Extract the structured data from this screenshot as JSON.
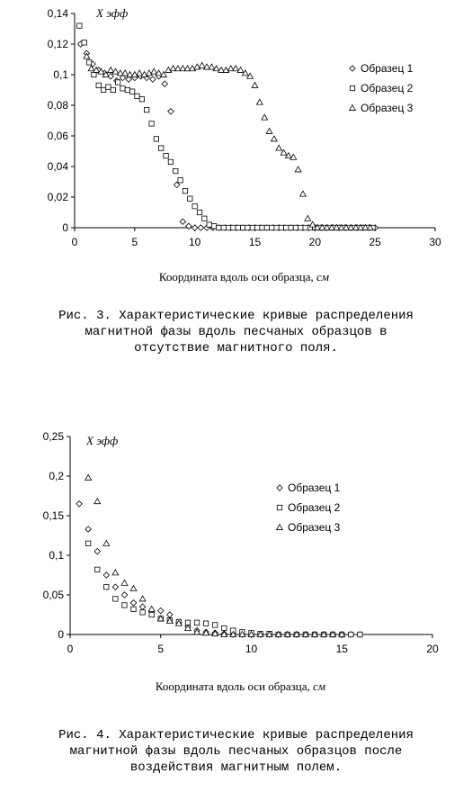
{
  "chart_data": [
    {
      "type": "scatter",
      "ylabel": "X эфф",
      "xlabel_prefix": "Координата вдоль оси образца, ",
      "xlabel_unit": "см",
      "xlim": [
        0,
        30
      ],
      "ylim": [
        0,
        0.14
      ],
      "xticks": [
        0,
        5,
        10,
        15,
        20,
        25,
        30
      ],
      "yticks": [
        0,
        0.02,
        0.04,
        0.06,
        0.08,
        0.1,
        0.12,
        0.14
      ],
      "ytick_labels": [
        "0",
        "0,02",
        "0,04",
        "0,06",
        "0,08",
        "0,1",
        "0,12",
        "0,14"
      ],
      "grid": false,
      "legend": "right",
      "series": [
        {
          "name": "Образец 1",
          "marker": "diamond",
          "x": [
            0.5,
            1.0,
            1.5,
            2.0,
            2.5,
            3.0,
            3.5,
            4.0,
            4.5,
            5.0,
            5.5,
            6.0,
            6.5,
            7.0,
            7.5,
            8.0,
            8.5,
            9.0,
            9.5,
            10.0,
            10.5,
            11.0,
            11.5,
            12.0,
            12.5,
            13.0,
            13.5,
            14.0,
            14.5,
            15.0,
            15.5,
            16.0,
            16.5,
            17.0,
            17.5,
            18.0,
            18.5,
            19.0,
            19.5,
            20.0,
            20.5,
            21.0,
            21.5,
            22.0,
            22.5,
            23.0,
            23.5,
            24.0,
            24.5,
            25.0
          ],
          "y": [
            0.12,
            0.114,
            0.107,
            0.103,
            0.101,
            0.099,
            0.096,
            0.098,
            0.097,
            0.098,
            0.099,
            0.098,
            0.097,
            0.099,
            0.094,
            0.076,
            0.028,
            0.004,
            0.001,
            0,
            0,
            0,
            0,
            0,
            0,
            0,
            0,
            0,
            0,
            0,
            0,
            0,
            0,
            0,
            0,
            0,
            0,
            0,
            0,
            0,
            0,
            0,
            0,
            0,
            0,
            0,
            0,
            0,
            0,
            0
          ]
        },
        {
          "name": "Образец 2",
          "marker": "square",
          "x": [
            0.4,
            0.8,
            1.2,
            1.6,
            2.0,
            2.4,
            2.8,
            3.2,
            3.6,
            4.0,
            4.4,
            4.8,
            5.2,
            5.6,
            6.0,
            6.4,
            6.8,
            7.2,
            7.6,
            8.0,
            8.4,
            8.8,
            9.2,
            9.6,
            10.0,
            10.4,
            10.8,
            11.2,
            11.6,
            12.0,
            12.4,
            12.8,
            13.2,
            13.6,
            14.0,
            14.4,
            14.8,
            15.2,
            15.6,
            16.0,
            16.4,
            16.8,
            17.2,
            17.6,
            18.0,
            18.4,
            18.8,
            19.2,
            19.6,
            20.0,
            20.4,
            20.8,
            21.2,
            21.6,
            22.0,
            22.4,
            22.8,
            23.2,
            23.6,
            24.0,
            24.4,
            24.8
          ],
          "y": [
            0.132,
            0.121,
            0.108,
            0.1,
            0.093,
            0.09,
            0.092,
            0.09,
            0.095,
            0.091,
            0.09,
            0.089,
            0.086,
            0.084,
            0.077,
            0.068,
            0.058,
            0.052,
            0.047,
            0.043,
            0.037,
            0.031,
            0.024,
            0.019,
            0.014,
            0.01,
            0.006,
            0.002,
            0.001,
            0,
            0,
            0,
            0,
            0,
            0,
            0,
            0,
            0,
            0,
            0,
            0,
            0,
            0,
            0,
            0,
            0,
            0,
            0,
            0,
            0,
            0,
            0,
            0,
            0,
            0,
            0,
            0,
            0,
            0,
            0,
            0,
            0
          ]
        },
        {
          "name": "Образец 3",
          "marker": "triangle",
          "x": [
            1.0,
            1.4,
            1.8,
            2.2,
            2.6,
            3.0,
            3.4,
            3.8,
            4.2,
            4.6,
            5.0,
            5.4,
            5.8,
            6.2,
            6.6,
            7.0,
            7.4,
            7.8,
            8.2,
            8.6,
            9.0,
            9.4,
            9.8,
            10.2,
            10.6,
            11.0,
            11.4,
            11.8,
            12.2,
            12.6,
            13.0,
            13.4,
            13.8,
            14.2,
            14.6,
            15.0,
            15.4,
            15.8,
            16.2,
            16.6,
            17.0,
            17.4,
            17.8,
            18.2,
            18.6,
            19.0,
            19.4,
            19.8,
            20.2,
            20.6,
            21.0,
            21.4,
            21.8,
            22.2,
            22.6,
            23.0,
            23.4,
            23.8,
            24.2,
            24.6
          ],
          "y": [
            0.112,
            0.104,
            0.103,
            0.102,
            0.1,
            0.103,
            0.102,
            0.101,
            0.101,
            0.1,
            0.1,
            0.101,
            0.1,
            0.101,
            0.102,
            0.101,
            0.1,
            0.103,
            0.104,
            0.104,
            0.104,
            0.104,
            0.104,
            0.105,
            0.106,
            0.105,
            0.105,
            0.104,
            0.103,
            0.103,
            0.104,
            0.104,
            0.103,
            0.101,
            0.099,
            0.093,
            0.082,
            0.072,
            0.063,
            0.058,
            0.052,
            0.049,
            0.047,
            0.046,
            0.038,
            0.022,
            0.006,
            0.002,
            0,
            0,
            0,
            0,
            0,
            0,
            0,
            0,
            0,
            0,
            0,
            0
          ]
        }
      ]
    },
    {
      "type": "scatter",
      "ylabel": "X эфф",
      "xlabel_prefix": "Координата вдоль оси образца, ",
      "xlabel_unit": "см",
      "xlim": [
        0,
        20
      ],
      "ylim": [
        0,
        0.25
      ],
      "xticks": [
        0,
        5,
        10,
        15,
        20
      ],
      "yticks": [
        0,
        0.05,
        0.1,
        0.15,
        0.2,
        0.25
      ],
      "ytick_labels": [
        "0",
        "0,05",
        "0,1",
        "0,15",
        "0,2",
        "0,25"
      ],
      "grid": false,
      "legend": "right",
      "series": [
        {
          "name": "Образец 1",
          "marker": "diamond",
          "x": [
            0.5,
            1.0,
            1.5,
            2.0,
            2.5,
            3.0,
            3.5,
            4.0,
            4.5,
            5.0,
            5.5,
            6.0,
            6.5,
            7.0,
            7.5,
            8.0,
            8.5,
            9.0,
            9.5,
            10.0,
            10.5,
            11.0,
            11.5,
            12.0,
            12.5,
            13.0,
            13.5,
            14.0,
            14.5,
            15.0,
            15.5,
            16.0
          ],
          "y": [
            0.165,
            0.133,
            0.105,
            0.075,
            0.06,
            0.05,
            0.04,
            0.035,
            0.03,
            0.03,
            0.025,
            0.015,
            0.01,
            0.005,
            0.003,
            0.002,
            0.001,
            0,
            0,
            0,
            0,
            0,
            0,
            0,
            0,
            0,
            0,
            0,
            0,
            0,
            0,
            0
          ]
        },
        {
          "name": "Образец 2",
          "marker": "square",
          "x": [
            1.0,
            1.5,
            2.0,
            2.5,
            3.0,
            3.5,
            4.0,
            4.5,
            5.0,
            5.5,
            6.0,
            6.5,
            7.0,
            7.5,
            8.0,
            8.5,
            9.0,
            9.5,
            10.0,
            10.5,
            11.0,
            11.5,
            12.0,
            12.5,
            13.0,
            13.5,
            14.0,
            14.5,
            15.0,
            15.5,
            16.0
          ],
          "y": [
            0.115,
            0.082,
            0.06,
            0.045,
            0.037,
            0.032,
            0.028,
            0.025,
            0.02,
            0.018,
            0.016,
            0.015,
            0.015,
            0.014,
            0.012,
            0.008,
            0.005,
            0.003,
            0.002,
            0.001,
            0.001,
            0,
            0,
            0,
            0,
            0,
            0,
            0,
            0,
            0,
            0
          ]
        },
        {
          "name": "Образец 3",
          "marker": "triangle",
          "x": [
            1.0,
            1.5,
            2.0,
            2.5,
            3.0,
            3.5,
            4.0,
            4.5,
            5.0,
            5.5,
            6.0,
            6.5,
            7.0,
            7.5,
            8.0,
            8.5,
            9.0,
            9.5,
            10.0,
            10.5,
            11.0,
            11.5,
            12.0,
            12.5,
            13.0,
            13.5,
            14.0,
            14.5,
            15.0
          ],
          "y": [
            0.198,
            0.168,
            0.115,
            0.078,
            0.065,
            0.058,
            0.045,
            0.032,
            0.02,
            0.017,
            0.014,
            0.008,
            0.003,
            0.002,
            0.001,
            0,
            0,
            0,
            0,
            0,
            0,
            0,
            0,
            0,
            0,
            0,
            0,
            0,
            0
          ]
        }
      ]
    }
  ],
  "captions": [
    "Рис. 3. Характеристические кривые распределения\nмагнитной фазы вдоль песчаных образцов в\nотсутствие магнитного поля.",
    "Рис. 4. Характеристические кривые распределения\nмагнитной фазы вдоль песчаных образцов после\nвоздействия магнитным полем."
  ]
}
